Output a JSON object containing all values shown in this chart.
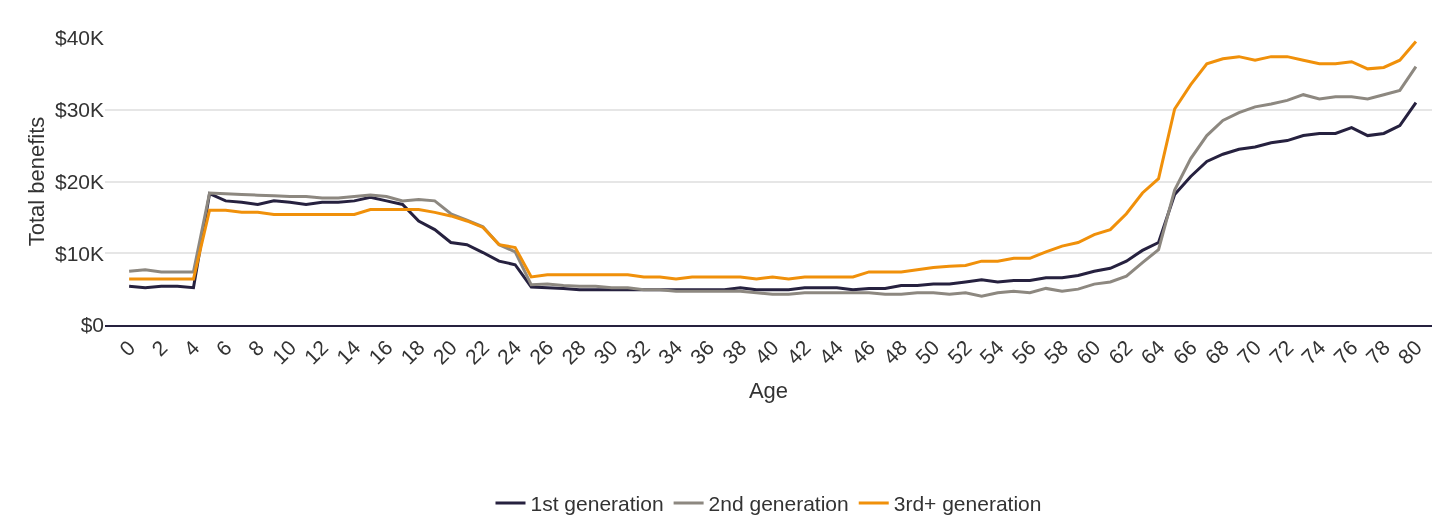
{
  "chart_data": {
    "type": "line",
    "xlabel": "Age",
    "ylabel": "Total benefits",
    "x": [
      0,
      1,
      2,
      3,
      4,
      5,
      6,
      7,
      8,
      9,
      10,
      11,
      12,
      13,
      14,
      15,
      16,
      17,
      18,
      19,
      20,
      21,
      22,
      23,
      24,
      25,
      26,
      27,
      28,
      29,
      30,
      31,
      32,
      33,
      34,
      35,
      36,
      37,
      38,
      39,
      40,
      41,
      42,
      43,
      44,
      45,
      46,
      47,
      48,
      49,
      50,
      51,
      52,
      53,
      54,
      55,
      56,
      57,
      58,
      59,
      60,
      61,
      62,
      63,
      64,
      65,
      66,
      67,
      68,
      69,
      70,
      71,
      72,
      73,
      74,
      75,
      76,
      77,
      78,
      79,
      80
    ],
    "series": [
      {
        "name": "1st generation",
        "color": "#26213f",
        "values": [
          5.4,
          5.2,
          5.4,
          5.4,
          5.2,
          18.3,
          17.3,
          17.1,
          16.8,
          17.3,
          17.1,
          16.8,
          17.1,
          17.1,
          17.3,
          17.8,
          17.3,
          16.8,
          14.5,
          13.3,
          11.5,
          11.2,
          10.1,
          8.9,
          8.4,
          5.3,
          5.2,
          5.1,
          4.9,
          4.9,
          4.9,
          4.9,
          4.9,
          4.9,
          4.9,
          4.9,
          4.9,
          4.9,
          5.2,
          4.9,
          4.9,
          4.9,
          5.2,
          5.2,
          5.2,
          4.9,
          5.1,
          5.1,
          5.5,
          5.5,
          5.7,
          5.7,
          6.0,
          6.3,
          6.0,
          6.2,
          6.2,
          6.6,
          6.6,
          6.9,
          7.5,
          7.9,
          8.9,
          10.4,
          11.5,
          18.2,
          20.7,
          22.8,
          23.8,
          24.5,
          24.8,
          25.4,
          25.7,
          26.4,
          26.7,
          26.7,
          27.5,
          26.4,
          26.7,
          27.8,
          31.0
        ]
      },
      {
        "name": "2nd generation",
        "color": "#8d8880",
        "values": [
          7.5,
          7.7,
          7.4,
          7.4,
          7.4,
          18.4,
          18.3,
          18.2,
          18.1,
          18.0,
          17.9,
          17.9,
          17.7,
          17.7,
          17.9,
          18.1,
          17.9,
          17.3,
          17.5,
          17.3,
          15.5,
          14.6,
          13.7,
          11.2,
          10.2,
          5.6,
          5.7,
          5.5,
          5.4,
          5.4,
          5.2,
          5.2,
          4.9,
          4.9,
          4.7,
          4.7,
          4.7,
          4.7,
          4.7,
          4.5,
          4.3,
          4.3,
          4.5,
          4.5,
          4.5,
          4.5,
          4.5,
          4.3,
          4.3,
          4.5,
          4.5,
          4.3,
          4.5,
          4.0,
          4.5,
          4.7,
          4.5,
          5.1,
          4.7,
          5.0,
          5.7,
          6.0,
          6.8,
          8.7,
          10.5,
          18.8,
          23.2,
          26.4,
          28.5,
          29.6,
          30.4,
          30.8,
          31.3,
          32.1,
          31.5,
          31.8,
          31.8,
          31.5,
          32.1,
          32.7,
          36.0
        ]
      },
      {
        "name": "3rd+ generation",
        "color": "#f0900a",
        "values": [
          6.4,
          6.4,
          6.4,
          6.4,
          6.4,
          16.0,
          16.0,
          15.7,
          15.7,
          15.4,
          15.4,
          15.4,
          15.4,
          15.4,
          15.4,
          16.1,
          16.1,
          16.1,
          16.1,
          15.7,
          15.2,
          14.5,
          13.6,
          11.2,
          10.8,
          6.7,
          7.0,
          7.0,
          7.0,
          7.0,
          7.0,
          7.0,
          6.7,
          6.7,
          6.4,
          6.7,
          6.7,
          6.7,
          6.7,
          6.4,
          6.7,
          6.4,
          6.7,
          6.7,
          6.7,
          6.7,
          7.4,
          7.4,
          7.4,
          7.7,
          8.0,
          8.2,
          8.3,
          8.9,
          8.9,
          9.3,
          9.3,
          10.2,
          11.0,
          11.5,
          12.6,
          13.3,
          15.5,
          18.4,
          20.4,
          30.1,
          33.5,
          36.4,
          37.1,
          37.4,
          36.9,
          37.4,
          37.4,
          36.9,
          36.4,
          36.4,
          36.7,
          35.7,
          35.9,
          36.9,
          39.5
        ]
      }
    ],
    "xlim": [
      -1.5,
      81
    ],
    "xticks": [
      0,
      2,
      4,
      6,
      8,
      10,
      12,
      14,
      16,
      18,
      20,
      22,
      24,
      26,
      28,
      30,
      32,
      34,
      36,
      38,
      40,
      42,
      44,
      46,
      48,
      50,
      52,
      54,
      56,
      58,
      60,
      62,
      64,
      66,
      68,
      70,
      72,
      74,
      76,
      78,
      80
    ],
    "ylim": [
      0,
      40
    ],
    "yticks": [
      {
        "value": 0,
        "label": "$0"
      },
      {
        "value": 10,
        "label": "$10K"
      },
      {
        "value": 20,
        "label": "$20K"
      },
      {
        "value": 30,
        "label": "$30K"
      },
      {
        "value": 40,
        "label": "$40K"
      }
    ],
    "grid": "y",
    "legend": "bottom",
    "marker": "none",
    "line_style": "solid"
  }
}
